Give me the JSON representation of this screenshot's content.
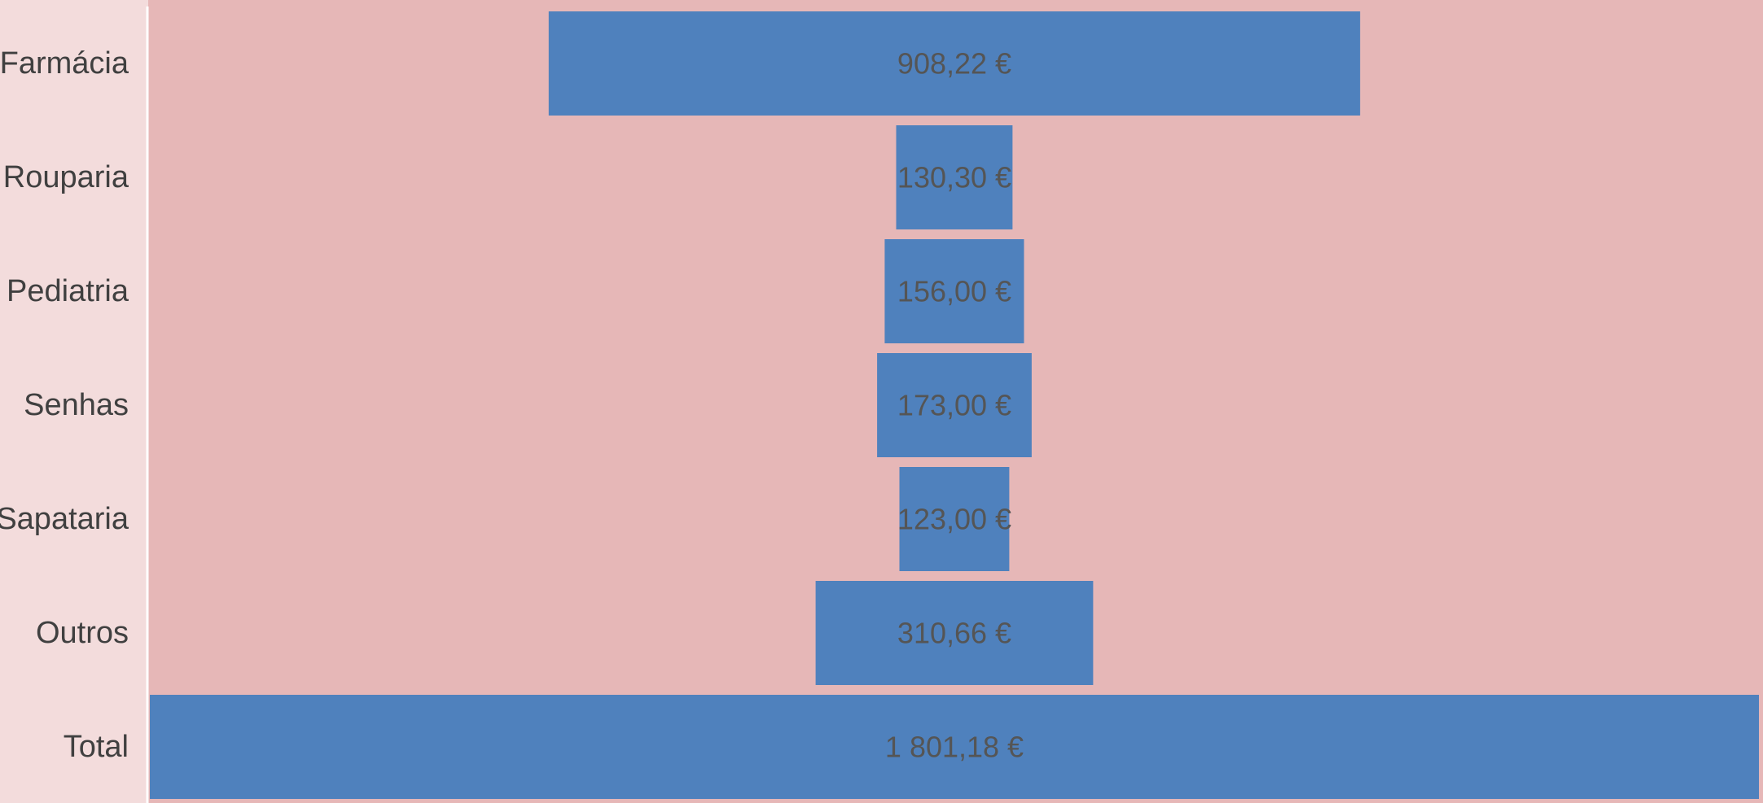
{
  "chart_data": {
    "type": "bar",
    "orientation": "horizontal-funnel",
    "categories": [
      "Farmácia",
      "Rouparia",
      "Pediatria",
      "Senhas",
      "Sapataria",
      "Outros",
      "Total"
    ],
    "values": [
      908.22,
      130.3,
      156.0,
      173.0,
      123.0,
      310.66,
      1801.18
    ],
    "value_labels": [
      "908,22 €",
      "130,30 €",
      "156,00 €",
      "173,00 €",
      "123,00 €",
      "310,66 €",
      "1 801,18 €"
    ],
    "xlim": [
      0,
      1801.18
    ],
    "grid": false,
    "legend": "none",
    "colors": {
      "plot_background": "#e6b7b7",
      "page_background": "#f3dcdc",
      "bar": "#4f81bd",
      "axis_line": "#ffffff",
      "category_text": "#404040",
      "value_text": "#555555"
    }
  }
}
